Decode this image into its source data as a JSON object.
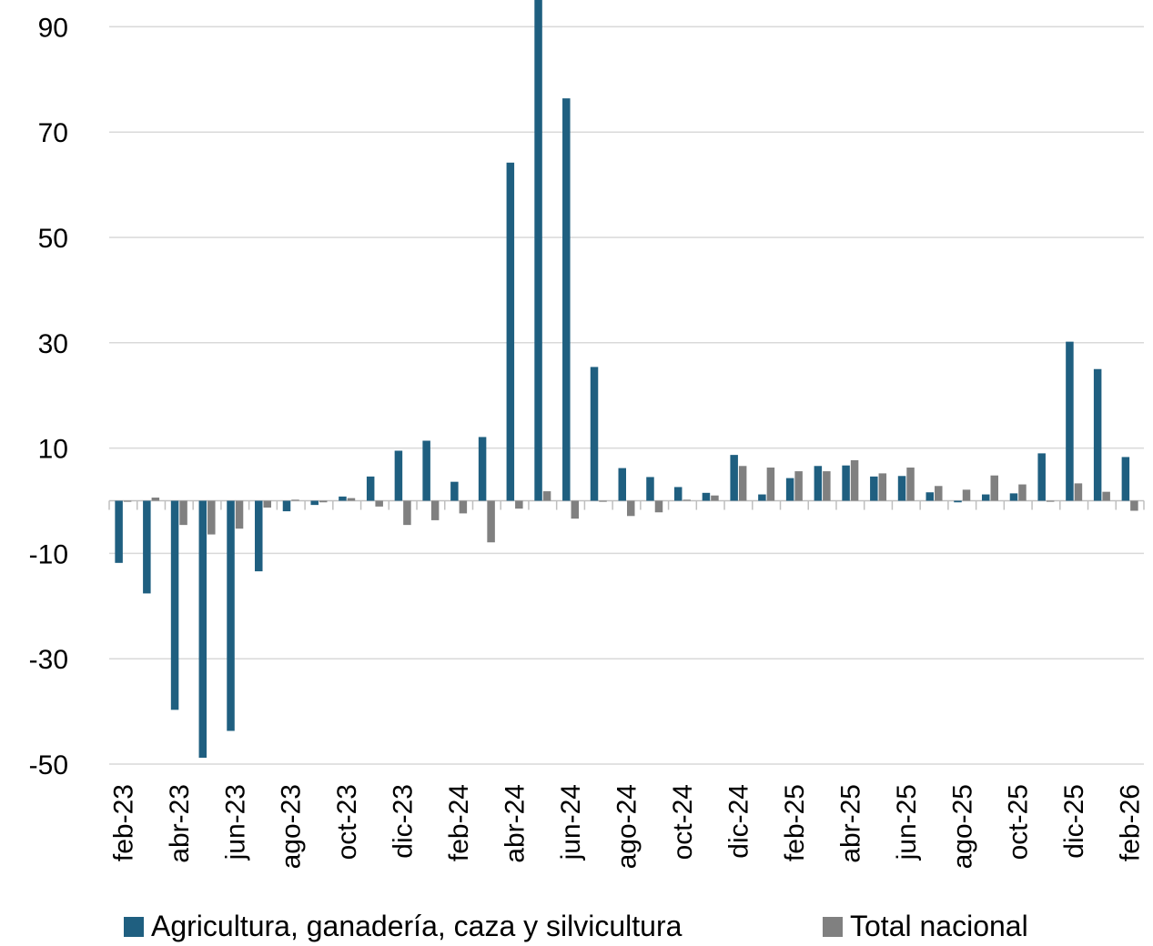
{
  "chart_data": {
    "type": "bar",
    "categories": [
      "feb-23",
      "mar-23",
      "abr-23",
      "may-23",
      "jun-23",
      "jul-23",
      "ago-23",
      "sep-23",
      "oct-23",
      "nov-23",
      "dic-23",
      "ene-24",
      "feb-24",
      "mar-24",
      "abr-24",
      "may-24",
      "jun-24",
      "jul-24",
      "ago-24",
      "sep-24",
      "oct-24",
      "nov-24",
      "dic-24",
      "ene-25",
      "feb-25",
      "mar-25",
      "abr-25",
      "may-25",
      "jun-25",
      "jul-25",
      "ago-25",
      "sep-25",
      "oct-25",
      "nov-25",
      "dic-25",
      "ene-26",
      "feb-26"
    ],
    "tick_labels": [
      "feb-23",
      "abr-23",
      "jun-23",
      "ago-23",
      "oct-23",
      "dic-23",
      "feb-24",
      "abr-24",
      "jun-24",
      "ago-24",
      "oct-24",
      "dic-24",
      "feb-25",
      "abr-25",
      "jun-25",
      "ago-25",
      "oct-25",
      "dic-25",
      "feb-26"
    ],
    "series": [
      {
        "name": "Agricultura, ganadería, caza y silvicultura",
        "color": "#1f5f80",
        "values": [
          -11.8,
          -17.6,
          -39.7,
          -48.8,
          -43.7,
          -13.4,
          -2.0,
          -0.8,
          0.8,
          4.6,
          9.5,
          11.4,
          3.6,
          12.1,
          64.2,
          96.0,
          76.4,
          25.4,
          6.2,
          4.5,
          2.6,
          1.5,
          8.7,
          1.2,
          4.3,
          6.6,
          6.7,
          4.6,
          4.7,
          1.6,
          -0.3,
          1.2,
          1.4,
          9.0,
          30.2,
          25.0,
          8.3
        ]
      },
      {
        "name": "Total nacional",
        "color": "#808080",
        "values": [
          -0.2,
          0.6,
          -4.6,
          -6.4,
          -5.3,
          -1.3,
          0.2,
          -0.3,
          0.5,
          -1.1,
          -4.6,
          -3.7,
          -2.4,
          -7.9,
          -1.5,
          1.8,
          -3.4,
          -0.2,
          -2.9,
          -2.2,
          0.2,
          1.0,
          6.6,
          6.3,
          5.6,
          5.6,
          7.7,
          5.2,
          6.3,
          2.8,
          2.1,
          4.8,
          3.1,
          -0.2,
          3.3,
          1.7,
          -1.9
        ]
      }
    ],
    "yticks": [
      90,
      70,
      50,
      30,
      10,
      -10,
      -30,
      -50
    ],
    "ylim": [
      -50,
      95
    ],
    "grid": true,
    "legend_position": "bottom",
    "title": "",
    "xlabel": "",
    "ylabel": ""
  }
}
